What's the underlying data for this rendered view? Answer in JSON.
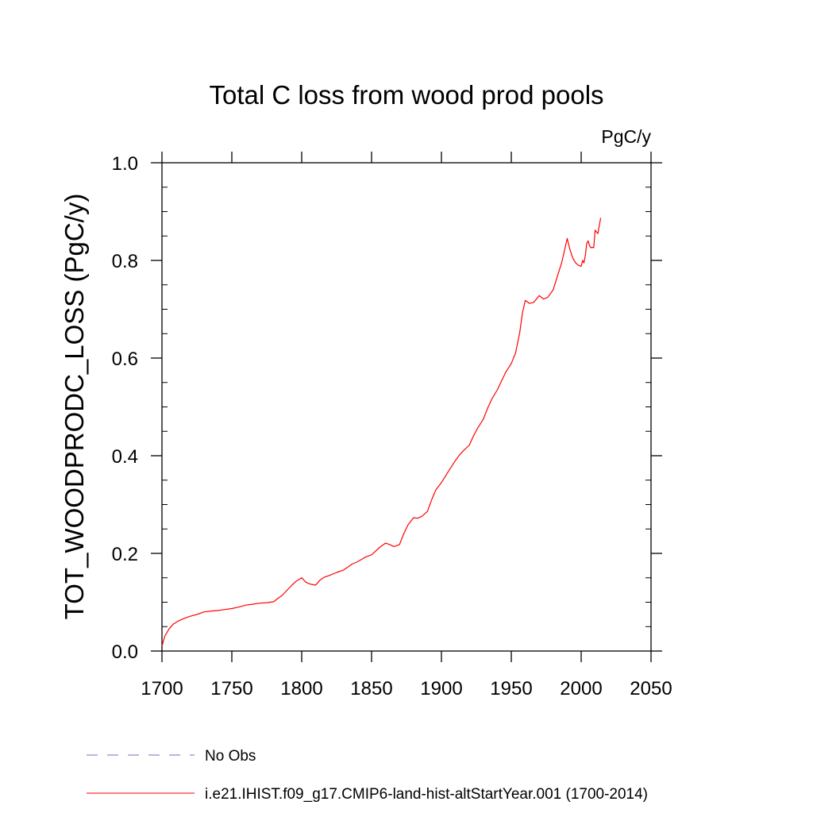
{
  "chart_data": {
    "type": "line",
    "title": "Total C loss from wood prod pools",
    "units_label": "PgC/y",
    "ylabel": "TOT_WOODPRODC_LOSS  (PgC/y)",
    "xlabel": "",
    "xlim": [
      1700,
      2050
    ],
    "ylim": [
      0.0,
      1.0
    ],
    "x_ticks": [
      1700,
      1750,
      1800,
      1850,
      1900,
      1950,
      2000,
      2050
    ],
    "x_tick_labels": [
      "1700",
      "1750",
      "1800",
      "1850",
      "1900",
      "1950",
      "2000",
      "2050"
    ],
    "y_ticks": [
      0.0,
      0.2,
      0.4,
      0.6,
      0.8,
      1.0
    ],
    "y_tick_labels": [
      "0.0",
      "0.2",
      "0.4",
      "0.6",
      "0.8",
      "1.0"
    ],
    "grid": false,
    "legend_position": "bottom",
    "series": [
      {
        "name": "No Obs",
        "color": "#7b68c8",
        "dash": "dashed",
        "x": [],
        "y": []
      },
      {
        "name": "i.e21.IHIST.f09_g17.CMIP6-land-hist-altStartYear.001 (1700-2014)",
        "color": "#ff0000",
        "dash": "solid",
        "x": [
          1700,
          1702,
          1705,
          1708,
          1712,
          1716,
          1720,
          1725,
          1730,
          1735,
          1740,
          1745,
          1750,
          1755,
          1760,
          1765,
          1770,
          1775,
          1780,
          1783,
          1786,
          1790,
          1793,
          1796,
          1800,
          1803,
          1806,
          1810,
          1813,
          1816,
          1820,
          1825,
          1830,
          1833,
          1836,
          1840,
          1843,
          1846,
          1850,
          1853,
          1856,
          1860,
          1863,
          1866,
          1870,
          1873,
          1876,
          1880,
          1883,
          1886,
          1890,
          1893,
          1896,
          1900,
          1905,
          1910,
          1913,
          1916,
          1920,
          1923,
          1926,
          1930,
          1933,
          1936,
          1940,
          1943,
          1946,
          1950,
          1953,
          1956,
          1958,
          1960,
          1963,
          1966,
          1970,
          1973,
          1976,
          1980,
          1983,
          1986,
          1988,
          1990,
          1992,
          1994,
          1996,
          1998,
          2000,
          2001,
          2002,
          2003,
          2004,
          2005,
          2006,
          2007,
          2008,
          2009,
          2010,
          2011,
          2012,
          2013,
          2014
        ],
        "y": [
          0.01,
          0.03,
          0.045,
          0.055,
          0.062,
          0.067,
          0.071,
          0.075,
          0.08,
          0.082,
          0.083,
          0.085,
          0.087,
          0.09,
          0.094,
          0.096,
          0.098,
          0.099,
          0.101,
          0.108,
          0.114,
          0.126,
          0.135,
          0.143,
          0.15,
          0.141,
          0.137,
          0.135,
          0.145,
          0.151,
          0.155,
          0.161,
          0.166,
          0.172,
          0.178,
          0.183,
          0.188,
          0.193,
          0.197,
          0.205,
          0.213,
          0.221,
          0.218,
          0.214,
          0.218,
          0.24,
          0.258,
          0.273,
          0.272,
          0.276,
          0.286,
          0.31,
          0.33,
          0.345,
          0.368,
          0.39,
          0.402,
          0.411,
          0.422,
          0.441,
          0.457,
          0.475,
          0.497,
          0.516,
          0.535,
          0.553,
          0.571,
          0.589,
          0.61,
          0.652,
          0.693,
          0.718,
          0.712,
          0.714,
          0.728,
          0.721,
          0.724,
          0.74,
          0.768,
          0.795,
          0.82,
          0.845,
          0.822,
          0.805,
          0.795,
          0.79,
          0.788,
          0.8,
          0.795,
          0.81,
          0.835,
          0.84,
          0.83,
          0.826,
          0.827,
          0.826,
          0.862,
          0.858,
          0.855,
          0.872,
          0.887
        ]
      }
    ]
  }
}
